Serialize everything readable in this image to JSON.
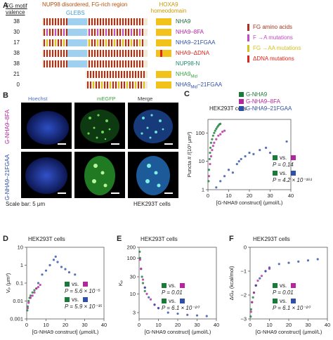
{
  "panelA": {
    "letter": "A",
    "valence_label": "FG motif valence",
    "region_label": "NUP98 disordered, FG-rich region",
    "glebs_label": "GLEBS",
    "hoxa9_label": "HOXA9 homeodomain",
    "rows": [
      {
        "valence": "38",
        "name": "NHA9",
        "color": "#1a6a3a"
      },
      {
        "valence": "30",
        "name": "NHA9–8FA",
        "color": "#b5259f"
      },
      {
        "valence": "17",
        "name": "NHA9–21FGAA",
        "color": "#2f4fa8"
      },
      {
        "valence": "38",
        "name": "NHA9–ΔDNA",
        "color": "#d9261c"
      },
      {
        "valence": "38",
        "name": "NUP98-N",
        "color": "#1d8a6f"
      },
      {
        "valence": "21",
        "name": "NHA9",
        "name_sub": "Mid",
        "color": "#3aa13f"
      },
      {
        "valence": "0",
        "name": "NHA9",
        "name_sub": "Mid",
        "name_suffix": "–21FGAA",
        "color": "#2f4fa8"
      }
    ],
    "legend": [
      {
        "label": "FG amino acids",
        "color": "#a8321f"
      },
      {
        "label": "F →A mutations",
        "color": "#c24bc9"
      },
      {
        "label": "FG →AA mutations",
        "color": "#d6c21a"
      },
      {
        "label": "ΔDNA mutations",
        "color": "#e0241a"
      }
    ]
  },
  "panelB": {
    "letter": "B",
    "col_titles": [
      "Hoechst",
      "mEGFP",
      "Merge"
    ],
    "col_colors": [
      "#4a6fd8",
      "#3aa13f",
      "#333333"
    ],
    "row_labels": [
      "G-NHA9–8FA",
      "G-NHA9–21FGAA"
    ],
    "row_label_colors": [
      "#b5259f",
      "#2f4fa8"
    ],
    "scale_bar": "Scale bar: 5 μm",
    "cells": "HEK293T cells"
  },
  "panelC": {
    "letter": "C",
    "cells": "HEK293T cells",
    "legend": [
      {
        "label": "G-NHA9",
        "color": "#1a7a3a"
      },
      {
        "label": "G-NHA9–8FA",
        "color": "#b5259f"
      },
      {
        "label": "G-NHA9–21FGAA",
        "color": "#2f4fa8"
      }
    ],
    "stats": [
      {
        "vs": "vs.",
        "p": "P = 0.14",
        "a": "#1a7a3a",
        "b": "#b5259f"
      },
      {
        "vs": "vs.",
        "p": "P = 4.2 × 10⁻¹⁶¹",
        "a": "#1a7a3a",
        "b": "#2f4fa8"
      }
    ]
  },
  "panelD": {
    "letter": "D",
    "cells": "HEK293T cells",
    "stats": [
      {
        "vs": "vs.",
        "p": "P = 5.6 × 10⁻⁵",
        "a": "#1a7a3a",
        "b": "#b5259f"
      },
      {
        "vs": "vs.",
        "p": "P = 5.9 × 10⁻³⁵",
        "a": "#1a7a3a",
        "b": "#2f4fa8"
      }
    ]
  },
  "panelE": {
    "letter": "E",
    "cells": "HEK293T cells",
    "stats": [
      {
        "vs": "vs.",
        "p": "P = 0.01",
        "a": "#1a7a3a",
        "b": "#b5259f"
      },
      {
        "vs": "vs.",
        "p": "P = 6.1 × 10⁻²⁰",
        "a": "#1a7a3a",
        "b": "#2f4fa8"
      }
    ]
  },
  "panelF": {
    "letter": "F",
    "cells": "HEK293T cells",
    "stats": [
      {
        "vs": "vs.",
        "p": "P = 0.01",
        "a": "#1a7a3a",
        "b": "#b5259f"
      },
      {
        "vs": "vs.",
        "p": "P = 6.1 × 10⁻²⁰",
        "a": "#1a7a3a",
        "b": "#2f4fa8"
      }
    ]
  },
  "chart_data": [
    {
      "panel": "C",
      "type": "scatter",
      "xlabel": "[G-NHA9 construct] (μmol/L)",
      "ylabel": "Puncta # /(10³ μm³)",
      "xlim": [
        0,
        40
      ],
      "ylim": [
        1,
        300
      ],
      "yscale": "log",
      "xticks": [
        "0",
        "10",
        "20",
        "30",
        "40"
      ],
      "yticks": [
        "1",
        "10",
        "100"
      ],
      "series": [
        {
          "name": "G-NHA9",
          "color": "#1a7a3a",
          "x": [
            0.3,
            0.5,
            0.8,
            1,
            1.2,
            1.5,
            2,
            2.5,
            3,
            3.5,
            4,
            4.5,
            5,
            5.5,
            6
          ],
          "y": [
            2,
            5,
            12,
            20,
            30,
            45,
            60,
            80,
            100,
            120,
            140,
            160,
            180,
            200,
            210
          ]
        },
        {
          "name": "G-NHA9–8FA",
          "color": "#b5259f",
          "x": [
            0.5,
            1,
            1.5,
            2,
            2.5,
            3,
            4,
            5,
            6,
            7,
            8
          ],
          "y": [
            3,
            8,
            15,
            25,
            35,
            45,
            60,
            80,
            90,
            110,
            120
          ]
        },
        {
          "name": "G-NHA9–21FGAA",
          "color": "#2f4fa8",
          "x": [
            4,
            6,
            8,
            10,
            12,
            14,
            15,
            16,
            18,
            20,
            22,
            25,
            28,
            30,
            38
          ],
          "y": [
            1.2,
            2,
            3,
            5,
            4,
            8,
            10,
            12,
            15,
            20,
            18,
            25,
            30,
            20,
            50
          ]
        }
      ]
    },
    {
      "panel": "D",
      "type": "scatter",
      "xlabel": "[G-NHA9 construct] (μmol/L)",
      "ylabel": "Vₚ (μm³)",
      "xlim": [
        0,
        40
      ],
      "ylim": [
        0.001,
        10
      ],
      "yscale": "log",
      "xticks": [
        "0",
        "10",
        "20",
        "30",
        "40"
      ],
      "yticks": [
        "0.001",
        "0.01",
        "0.1",
        "1",
        "10"
      ],
      "series": [
        {
          "name": "G-NHA9",
          "color": "#1a7a3a",
          "x": [
            0.3,
            0.5,
            1,
            1.5,
            2,
            3,
            4,
            5
          ],
          "y": [
            0.003,
            0.005,
            0.01,
            0.015,
            0.02,
            0.03,
            0.04,
            0.05
          ]
        },
        {
          "name": "G-NHA9–8FA",
          "color": "#b5259f",
          "x": [
            0.5,
            1,
            2,
            3,
            4,
            5,
            6,
            7
          ],
          "y": [
            0.004,
            0.008,
            0.015,
            0.02,
            0.03,
            0.05,
            0.06,
            0.08
          ]
        },
        {
          "name": "G-NHA9–21FGAA",
          "color": "#2f4fa8",
          "x": [
            6,
            8,
            10,
            12,
            14,
            15,
            16,
            18,
            20,
            22,
            25
          ],
          "y": [
            0.1,
            0.3,
            0.5,
            1,
            2,
            3,
            1.5,
            0.8,
            0.6,
            0.4,
            0.3
          ]
        }
      ]
    },
    {
      "panel": "E",
      "type": "scatter",
      "xlabel": "[G-NHA9 construct] (μmol/L)",
      "ylabel": "Kₚ",
      "xlim": [
        0,
        40
      ],
      "ylim": [
        2,
        200
      ],
      "yscale": "log",
      "xticks": [
        "0",
        "10",
        "20",
        "30",
        "40"
      ],
      "yticks": [
        "3",
        "10",
        "30",
        "100",
        "200"
      ],
      "series": [
        {
          "name": "G-NHA9",
          "color": "#1a7a3a",
          "x": [
            0.3,
            0.5,
            1,
            1.5,
            2,
            3
          ],
          "y": [
            150,
            100,
            50,
            30,
            20,
            12
          ]
        },
        {
          "name": "G-NHA9–8FA",
          "color": "#b5259f",
          "x": [
            0.5,
            1,
            2,
            3,
            4,
            6,
            8,
            10
          ],
          "y": [
            90,
            50,
            25,
            15,
            10,
            7,
            5,
            4
          ]
        },
        {
          "name": "G-NHA9–21FGAA",
          "color": "#2f4fa8",
          "x": [
            3,
            5,
            8,
            10,
            15,
            20,
            25,
            30,
            35
          ],
          "y": [
            15,
            8,
            5,
            4,
            3,
            2.8,
            2.6,
            2.5,
            2.4
          ]
        }
      ]
    },
    {
      "panel": "F",
      "type": "scatter",
      "xlabel": "[G-NHA9 construct] (μmol/L)",
      "ylabel": "ΔGₚ (kcal/mol)",
      "xlim": [
        0,
        40
      ],
      "ylim": [
        -3,
        0
      ],
      "xticks": [
        "0",
        "10",
        "20",
        "30",
        "40"
      ],
      "yticks": [
        "−3",
        "−2",
        "−1",
        "0"
      ],
      "series": [
        {
          "name": "G-NHA9",
          "color": "#1a7a3a",
          "x": [
            0.3,
            0.5,
            1,
            1.5,
            2,
            3
          ],
          "y": [
            -2.9,
            -2.6,
            -2.3,
            -2.1,
            -1.9,
            -1.6
          ]
        },
        {
          "name": "G-NHA9–8FA",
          "color": "#b5259f",
          "x": [
            0.5,
            1,
            2,
            3,
            4,
            6,
            8,
            10
          ],
          "y": [
            -2.7,
            -2.3,
            -1.9,
            -1.6,
            -1.4,
            -1.2,
            -1.0,
            -0.9
          ]
        },
        {
          "name": "G-NHA9–21FGAA",
          "color": "#2f4fa8",
          "x": [
            3,
            5,
            8,
            10,
            15,
            20,
            25,
            30,
            35
          ],
          "y": [
            -1.6,
            -1.3,
            -1.0,
            -0.85,
            -0.7,
            -0.65,
            -0.6,
            -0.55,
            -0.5
          ]
        }
      ]
    }
  ]
}
